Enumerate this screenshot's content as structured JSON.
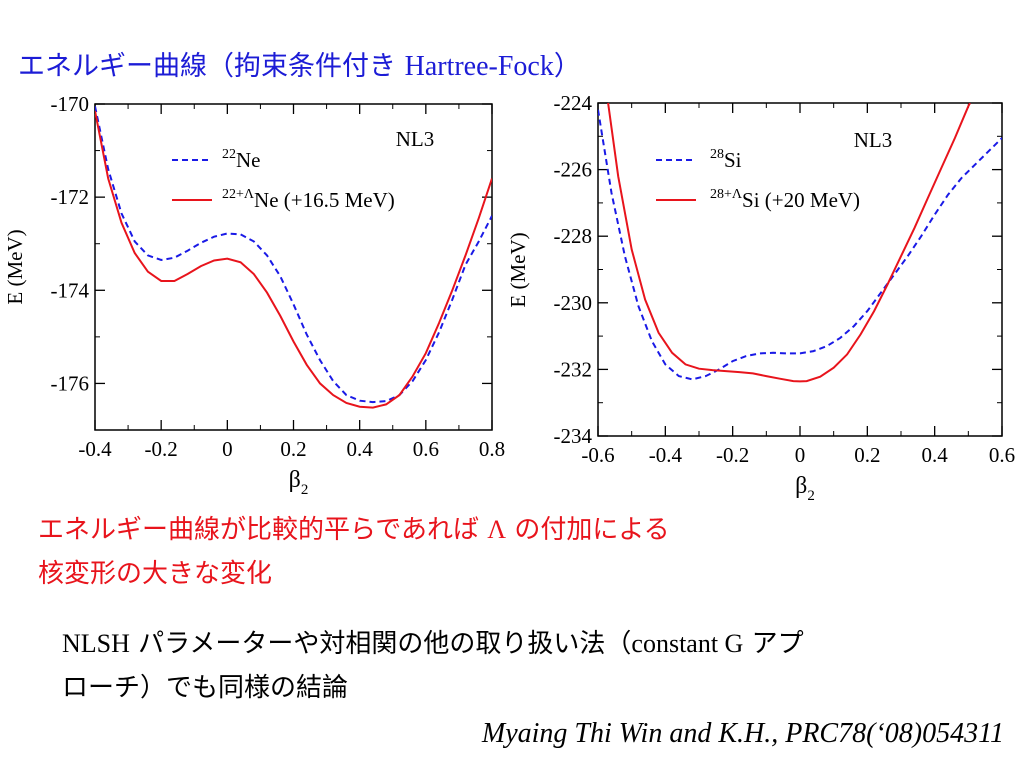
{
  "slide": {
    "title_jp": "エネルギー曲線（拘束条件付き ",
    "title_latin": "Hartree-Fock",
    "title_close": "）",
    "conclusion_part1": "エネルギー曲線が比較的平らであれば ",
    "conclusion_symbol": "Λ",
    "conclusion_part2": " の付加による",
    "conclusion_line2": "核変形の大きな変化",
    "note_latin1": "NLSH",
    "note_jp1": " パラメーターや対相関の他の取り扱い法（",
    "note_latin2": "constant G",
    "note_jp2": " アプ",
    "note_line2": "ローチ）でも同様の結論",
    "citation": "Myaing Thi Win and K.H., PRC78(‘08)054311"
  },
  "colors": {
    "title": "#1c1cd6",
    "conclusion": "#e8141c",
    "core_series": "#1a1ae6",
    "hyper_series": "#e8141c"
  },
  "chart_data": [
    {
      "type": "line",
      "model_label": "NL3",
      "xlabel": "β",
      "xlabel_sub": "2",
      "ylabel": "E  (MeV)",
      "xlim": [
        -0.4,
        0.8
      ],
      "ylim": [
        -177,
        -170
      ],
      "xticks": [
        -0.4,
        -0.2,
        0,
        0.2,
        0.4,
        0.6,
        0.8
      ],
      "xtick_labels": [
        "-0.4",
        "-0.2",
        "0",
        "0.2",
        "0.4",
        "0.6",
        "0.8"
      ],
      "yticks": [
        -170,
        -172,
        -174,
        -176
      ],
      "ytick_labels": [
        "-170",
        "-172",
        "-174",
        "-176"
      ],
      "legend": [
        {
          "mass": "22",
          "symbol": "Ne",
          "suffix": ""
        },
        {
          "mass": "22+Λ",
          "symbol": "Ne",
          "suffix": " (+16.5 MeV)"
        }
      ],
      "series": [
        {
          "name": "22Ne",
          "style": "dashed",
          "color": "#1a1ae6",
          "points": [
            [
              -0.4,
              -170.05
            ],
            [
              -0.36,
              -171.4
            ],
            [
              -0.32,
              -172.35
            ],
            [
              -0.28,
              -172.95
            ],
            [
              -0.24,
              -173.25
            ],
            [
              -0.2,
              -173.35
            ],
            [
              -0.16,
              -173.3
            ],
            [
              -0.12,
              -173.15
            ],
            [
              -0.08,
              -172.98
            ],
            [
              -0.04,
              -172.85
            ],
            [
              0,
              -172.78
            ],
            [
              0.04,
              -172.8
            ],
            [
              0.08,
              -172.95
            ],
            [
              0.12,
              -173.25
            ],
            [
              0.16,
              -173.7
            ],
            [
              0.2,
              -174.3
            ],
            [
              0.24,
              -174.95
            ],
            [
              0.28,
              -175.5
            ],
            [
              0.32,
              -175.95
            ],
            [
              0.36,
              -176.25
            ],
            [
              0.4,
              -176.37
            ],
            [
              0.44,
              -176.4
            ],
            [
              0.48,
              -176.38
            ],
            [
              0.52,
              -176.25
            ],
            [
              0.56,
              -175.95
            ],
            [
              0.6,
              -175.5
            ],
            [
              0.64,
              -174.9
            ],
            [
              0.68,
              -174.2
            ],
            [
              0.72,
              -173.45
            ],
            [
              0.76,
              -172.95
            ],
            [
              0.8,
              -172.4
            ]
          ]
        },
        {
          "name": "22+ΛNe (+16.5 MeV)",
          "style": "solid",
          "color": "#e8141c",
          "points": [
            [
              -0.4,
              -170.15
            ],
            [
              -0.36,
              -171.6
            ],
            [
              -0.32,
              -172.55
            ],
            [
              -0.28,
              -173.2
            ],
            [
              -0.24,
              -173.6
            ],
            [
              -0.2,
              -173.8
            ],
            [
              -0.16,
              -173.8
            ],
            [
              -0.12,
              -173.65
            ],
            [
              -0.08,
              -173.48
            ],
            [
              -0.04,
              -173.36
            ],
            [
              0,
              -173.32
            ],
            [
              0.04,
              -173.4
            ],
            [
              0.08,
              -173.65
            ],
            [
              0.12,
              -174.05
            ],
            [
              0.16,
              -174.55
            ],
            [
              0.2,
              -175.1
            ],
            [
              0.24,
              -175.6
            ],
            [
              0.28,
              -176.0
            ],
            [
              0.32,
              -176.25
            ],
            [
              0.36,
              -176.42
            ],
            [
              0.4,
              -176.5
            ],
            [
              0.44,
              -176.52
            ],
            [
              0.48,
              -176.45
            ],
            [
              0.52,
              -176.25
            ],
            [
              0.56,
              -175.85
            ],
            [
              0.6,
              -175.35
            ],
            [
              0.64,
              -174.7
            ],
            [
              0.68,
              -174.0
            ],
            [
              0.72,
              -173.25
            ],
            [
              0.76,
              -172.45
            ],
            [
              0.8,
              -171.6
            ]
          ]
        }
      ]
    },
    {
      "type": "line",
      "model_label": "NL3",
      "xlabel": "β",
      "xlabel_sub": "2",
      "ylabel": "E  (MeV)",
      "xlim": [
        -0.6,
        0.6
      ],
      "ylim": [
        -234,
        -224
      ],
      "xticks": [
        -0.6,
        -0.4,
        -0.2,
        0,
        0.2,
        0.4,
        0.6
      ],
      "xtick_labels": [
        "-0.6",
        "-0.4",
        "-0.2",
        "0",
        "0.2",
        "0.4",
        "0.6"
      ],
      "yticks": [
        -224,
        -226,
        -228,
        -230,
        -232,
        -234
      ],
      "ytick_labels": [
        "-224",
        "-226",
        "-228",
        "-230",
        "-232",
        "-234"
      ],
      "legend": [
        {
          "mass": "28",
          "symbol": "Si",
          "suffix": ""
        },
        {
          "mass": "28+Λ",
          "symbol": "Si",
          "suffix": " (+20 MeV)"
        }
      ],
      "series": [
        {
          "name": "28Si",
          "style": "dashed",
          "color": "#1a1ae6",
          "points": [
            [
              -0.6,
              -224.2
            ],
            [
              -0.56,
              -226.7
            ],
            [
              -0.52,
              -228.6
            ],
            [
              -0.48,
              -230.1
            ],
            [
              -0.44,
              -231.15
            ],
            [
              -0.4,
              -231.85
            ],
            [
              -0.36,
              -232.2
            ],
            [
              -0.32,
              -232.3
            ],
            [
              -0.28,
              -232.2
            ],
            [
              -0.24,
              -232.0
            ],
            [
              -0.2,
              -231.75
            ],
            [
              -0.16,
              -231.6
            ],
            [
              -0.12,
              -231.52
            ],
            [
              -0.08,
              -231.5
            ],
            [
              -0.04,
              -231.52
            ],
            [
              0,
              -231.52
            ],
            [
              0.04,
              -231.45
            ],
            [
              0.08,
              -231.3
            ],
            [
              0.12,
              -231.05
            ],
            [
              0.16,
              -230.7
            ],
            [
              0.2,
              -230.25
            ],
            [
              0.24,
              -229.7
            ],
            [
              0.28,
              -229.15
            ],
            [
              0.32,
              -228.6
            ],
            [
              0.36,
              -228.0
            ],
            [
              0.4,
              -227.35
            ],
            [
              0.44,
              -226.75
            ],
            [
              0.48,
              -226.25
            ],
            [
              0.52,
              -225.85
            ],
            [
              0.56,
              -225.45
            ],
            [
              0.6,
              -225.05
            ]
          ]
        },
        {
          "name": "28+ΛSi (+20 MeV)",
          "style": "solid",
          "color": "#e8141c",
          "points": [
            [
              -0.57,
              -224.0
            ],
            [
              -0.54,
              -226.2
            ],
            [
              -0.5,
              -228.4
            ],
            [
              -0.46,
              -229.9
            ],
            [
              -0.42,
              -230.9
            ],
            [
              -0.38,
              -231.5
            ],
            [
              -0.34,
              -231.85
            ],
            [
              -0.3,
              -231.98
            ],
            [
              -0.26,
              -232.02
            ],
            [
              -0.22,
              -232.05
            ],
            [
              -0.18,
              -232.08
            ],
            [
              -0.14,
              -232.12
            ],
            [
              -0.1,
              -232.2
            ],
            [
              -0.06,
              -232.28
            ],
            [
              -0.02,
              -232.35
            ],
            [
              0,
              -232.36
            ],
            [
              0.02,
              -232.35
            ],
            [
              0.06,
              -232.22
            ],
            [
              0.1,
              -231.95
            ],
            [
              0.14,
              -231.55
            ],
            [
              0.18,
              -230.95
            ],
            [
              0.22,
              -230.25
            ],
            [
              0.26,
              -229.45
            ],
            [
              0.3,
              -228.6
            ],
            [
              0.34,
              -227.75
            ],
            [
              0.38,
              -226.85
            ],
            [
              0.42,
              -225.95
            ],
            [
              0.46,
              -225.05
            ],
            [
              0.5,
              -224.1
            ],
            [
              0.505,
              -224.0
            ]
          ]
        }
      ]
    }
  ]
}
